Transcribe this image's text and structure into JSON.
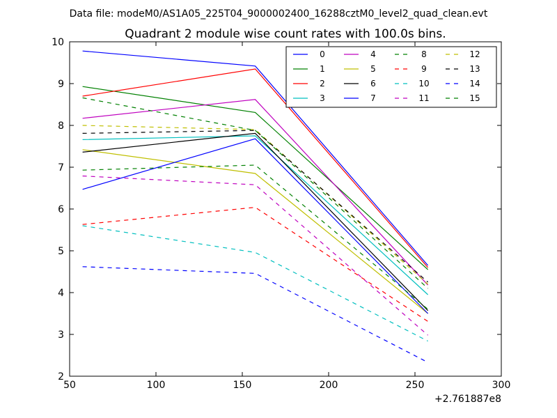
{
  "supertitle": "Data file: modeM0/AS1A05_225T04_9000002400_16288cztM0_level2_quad_clean.evt",
  "chart_data": {
    "type": "line",
    "title": "Quadrant 2 module wise count rates with 100.0s bins.",
    "xlabel": "",
    "ylabel": "",
    "x_offset_label": "+2.761887e8",
    "xlim": [
      50,
      300
    ],
    "ylim": [
      2,
      10
    ],
    "xticks": [
      50,
      100,
      150,
      200,
      250,
      300
    ],
    "yticks": [
      2,
      3,
      4,
      5,
      6,
      7,
      8,
      9,
      10
    ],
    "grid": false,
    "legend": {
      "location": "upper-right",
      "columns": 4
    },
    "x": [
      57.5,
      157.5,
      257.5
    ],
    "series": [
      {
        "name": "0",
        "color": "#0000ff",
        "dash": "solid",
        "values": [
          9.78,
          9.42,
          4.65
        ]
      },
      {
        "name": "1",
        "color": "#008000",
        "dash": "solid",
        "values": [
          8.93,
          8.31,
          4.55
        ]
      },
      {
        "name": "2",
        "color": "#ff0000",
        "dash": "solid",
        "values": [
          8.7,
          9.35,
          4.6
        ]
      },
      {
        "name": "3",
        "color": "#00bfbf",
        "dash": "solid",
        "values": [
          7.66,
          7.75,
          3.95
        ]
      },
      {
        "name": "4",
        "color": "#bf00bf",
        "dash": "solid",
        "values": [
          8.17,
          8.62,
          4.18
        ]
      },
      {
        "name": "5",
        "color": "#bfbf00",
        "dash": "solid",
        "values": [
          7.42,
          6.85,
          3.5
        ]
      },
      {
        "name": "6",
        "color": "#000000",
        "dash": "solid",
        "values": [
          7.36,
          7.81,
          3.57
        ]
      },
      {
        "name": "7",
        "color": "#0000ff",
        "dash": "solid",
        "values": [
          6.47,
          7.68,
          3.5
        ]
      },
      {
        "name": "8",
        "color": "#008000",
        "dash": "dashed",
        "values": [
          6.93,
          7.05,
          3.6
        ]
      },
      {
        "name": "9",
        "color": "#ff0000",
        "dash": "dashed",
        "values": [
          5.63,
          6.04,
          3.31
        ]
      },
      {
        "name": "10",
        "color": "#00bfbf",
        "dash": "dashed",
        "values": [
          5.6,
          4.96,
          2.84
        ]
      },
      {
        "name": "11",
        "color": "#bf00bf",
        "dash": "dashed",
        "values": [
          6.79,
          6.58,
          2.98
        ]
      },
      {
        "name": "12",
        "color": "#bfbf00",
        "dash": "dashed",
        "values": [
          8.0,
          7.9,
          4.2
        ]
      },
      {
        "name": "13",
        "color": "#000000",
        "dash": "dashed",
        "values": [
          7.81,
          7.88,
          4.25
        ]
      },
      {
        "name": "14",
        "color": "#0000ff",
        "dash": "dashed",
        "values": [
          4.62,
          4.46,
          2.33
        ]
      },
      {
        "name": "15",
        "color": "#008000",
        "dash": "dashed",
        "values": [
          8.66,
          7.88,
          4.1
        ]
      }
    ]
  }
}
